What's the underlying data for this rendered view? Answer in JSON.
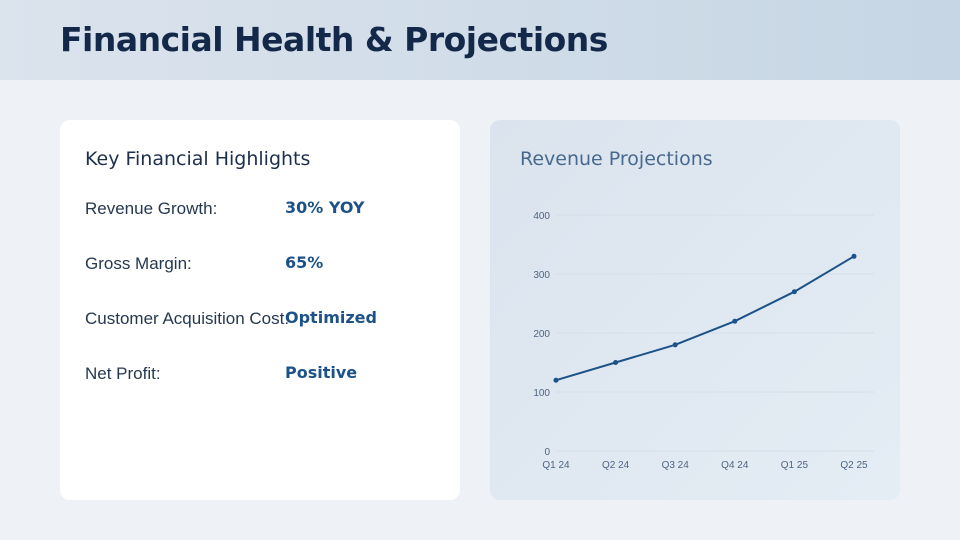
{
  "header": {
    "title": "Financial Health & Projections"
  },
  "highlights": {
    "title": "Key Financial Highlights",
    "items": [
      {
        "label": "Revenue Growth:",
        "value": "30% YOY"
      },
      {
        "label": "Gross Margin:",
        "value": "65%"
      },
      {
        "label": "Customer Acquisition Cost:",
        "value": "Optimized"
      },
      {
        "label": "Net Profit:",
        "value": "Positive"
      }
    ]
  },
  "chart_card": {
    "title": "Revenue Projections"
  },
  "chart_data": {
    "type": "line",
    "categories": [
      "Q1 24",
      "Q2 24",
      "Q3 24",
      "Q4 24",
      "Q1 25",
      "Q2 25"
    ],
    "values": [
      120,
      150,
      180,
      220,
      270,
      330
    ],
    "ylim": [
      0,
      400
    ],
    "yticks": [
      0,
      100,
      200,
      300,
      400
    ],
    "grid": true,
    "color": "#1d5288"
  }
}
